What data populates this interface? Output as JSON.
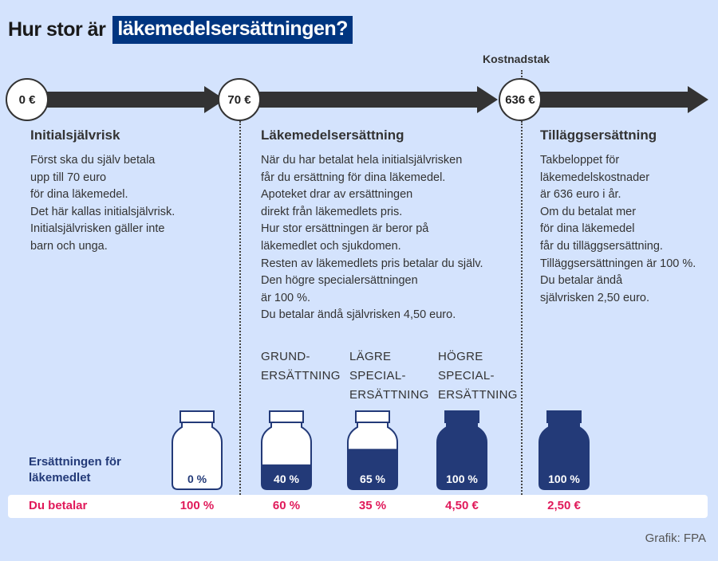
{
  "header": {
    "title_prefix": "Hur stor är",
    "title_highlight": "läkemedelsersättningen?"
  },
  "colors": {
    "background": "#d4e3fd",
    "title_highlight_bg": "#003580",
    "bottle_fill": "#233a78",
    "pay_text": "#e0195a",
    "arrow": "#333333"
  },
  "timeline": {
    "markers": [
      {
        "label": "0 €"
      },
      {
        "label": "70 €"
      },
      {
        "label": "636 €",
        "caption": "Kostnadstak"
      }
    ]
  },
  "sections": [
    {
      "title": "Initialsjälvrisk",
      "text": "Först ska du själv betala\nupp till 70 euro\nför dina läkemedel.\nDet här kallas initialsjälvrisk.\nInitialsjälvrisken gäller inte\nbarn och unga."
    },
    {
      "title": "Läkemedelsersättning",
      "text": "När du har betalat hela initialsjälvrisken\nfår du ersättning för dina läkemedel.\nApoteket drar av ersättningen\ndirekt från läkemedlets pris.\nHur stor ersättningen är beror på\nläkemedlet och sjukdomen.\nResten av läkemedlets pris betalar du själv.\nDen högre specialersättningen\när 100 %.\nDu betalar ändå självrisken 4,50 euro."
    },
    {
      "title": "Tilläggsersättning",
      "text": "Takbeloppet för\nläkemedelskostnader\när 636 euro i år.\nOm du betalat mer\nför dina läkemedel\nfår du tilläggsersättning.\nTilläggsersättningen är 100 %.\nDu betalar ändå\nsjälvrisken 2,50 euro."
    }
  ],
  "categories": [
    {
      "label": "GRUND-\nERSÄTTNING"
    },
    {
      "label": "LÄGRE\nSPECIAL-\nERSÄTTNING"
    },
    {
      "label": "HÖGRE\nSPECIAL-\nERSÄTTNING"
    }
  ],
  "compensation_row": {
    "label": "Ersättningen för\nläkemedlet",
    "values": [
      "0 %",
      "40 %",
      "65 %",
      "100 %",
      "100 %"
    ],
    "fill_ratios": [
      0,
      0.4,
      0.65,
      1,
      1
    ]
  },
  "pay_row": {
    "label": "Du betalar",
    "values": [
      "100 %",
      "60 %",
      "35 %",
      "4,50 €",
      "2,50 €"
    ]
  },
  "footer": {
    "credit": "Grafik: FPA"
  }
}
